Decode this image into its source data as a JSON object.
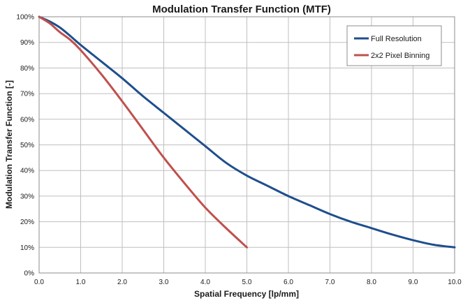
{
  "colors": {
    "full_resolution": "#1F4E8C",
    "pixel_binning": "#C0504D",
    "grid": "#BFBFBF",
    "background": "#FFFFFF"
  },
  "chart_data": {
    "type": "line",
    "title": "Modulation Transfer Function (MTF)",
    "xlabel": "Spatial Frequency [lp/mm]",
    "ylabel": "Modulation Transfer Function [-]",
    "xlim": [
      0,
      10
    ],
    "ylim": [
      0,
      100
    ],
    "x_ticks": [
      "0.0",
      "1.0",
      "2.0",
      "3.0",
      "4.0",
      "5.0",
      "6.0",
      "7.0",
      "8.0",
      "9.0",
      "10.0"
    ],
    "y_ticks": [
      "0%",
      "10%",
      "20%",
      "30%",
      "40%",
      "50%",
      "60%",
      "70%",
      "80%",
      "90%",
      "100%"
    ],
    "grid": true,
    "legend_position": "top-right",
    "series": [
      {
        "name": "Full Resolution",
        "color": "#1F4E8C",
        "x": [
          0,
          0.25,
          0.5,
          0.75,
          1.0,
          1.5,
          2.0,
          2.5,
          3.0,
          3.5,
          4.0,
          4.5,
          5.0,
          5.5,
          6.0,
          6.5,
          7.0,
          7.5,
          8.0,
          8.5,
          9.0,
          9.5,
          10.0
        ],
        "values": [
          100,
          98.2,
          95.8,
          92.5,
          89,
          82.5,
          76,
          69,
          62.5,
          56,
          49.5,
          43,
          38,
          34,
          30,
          26.5,
          23,
          20,
          17.5,
          15,
          12.8,
          11,
          10
        ]
      },
      {
        "name": "2x2 Pixel Binning",
        "color": "#C0504D",
        "x": [
          0,
          0.25,
          0.5,
          0.75,
          1.0,
          1.5,
          2.0,
          2.5,
          3.0,
          3.5,
          4.0,
          4.5,
          5.0
        ],
        "values": [
          100,
          97.5,
          94,
          91,
          87,
          77.5,
          67,
          56,
          45,
          35,
          25.5,
          17.5,
          10
        ]
      }
    ]
  }
}
